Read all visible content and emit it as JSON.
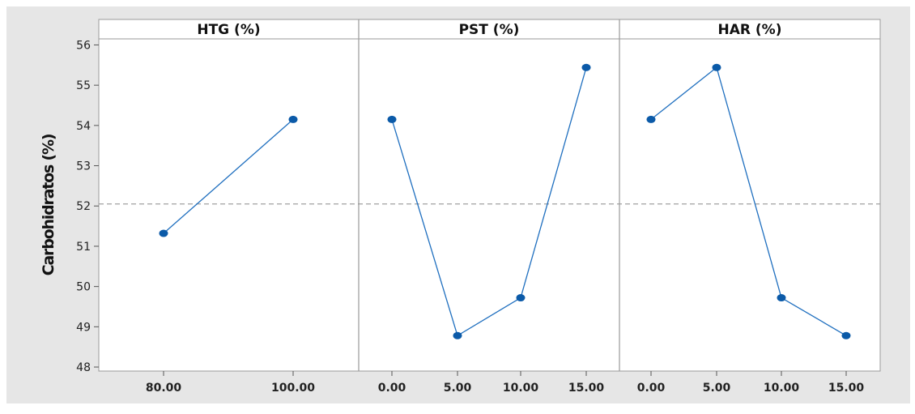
{
  "chart_data": {
    "type": "line",
    "title": "",
    "ylabel": "Carbohidratos (%)",
    "ylim": [
      47.9,
      56.15
    ],
    "yticks": [
      48,
      49,
      50,
      51,
      52,
      53,
      54,
      55,
      56
    ],
    "reference_line": 52.05,
    "colors": {
      "line": "#1f6fbf",
      "marker": "#0b5aa8",
      "reference": "#a0a0a0",
      "panel_border": "#9a9a9a",
      "outer_background": "#e6e6e6",
      "plot_background": "#ffffff"
    },
    "panels": [
      {
        "title": "HTG (%)",
        "categories": [
          "80.00",
          "100.00"
        ],
        "values": [
          51.32,
          54.15
        ]
      },
      {
        "title": "PST (%)",
        "categories": [
          "0.00",
          "5.00",
          "10.00",
          "15.00"
        ],
        "values": [
          54.15,
          48.78,
          49.72,
          55.44
        ]
      },
      {
        "title": "HAR (%)",
        "categories": [
          "0.00",
          "5.00",
          "10.00",
          "15.00"
        ],
        "values": [
          54.15,
          55.44,
          49.72,
          48.78
        ]
      }
    ]
  }
}
